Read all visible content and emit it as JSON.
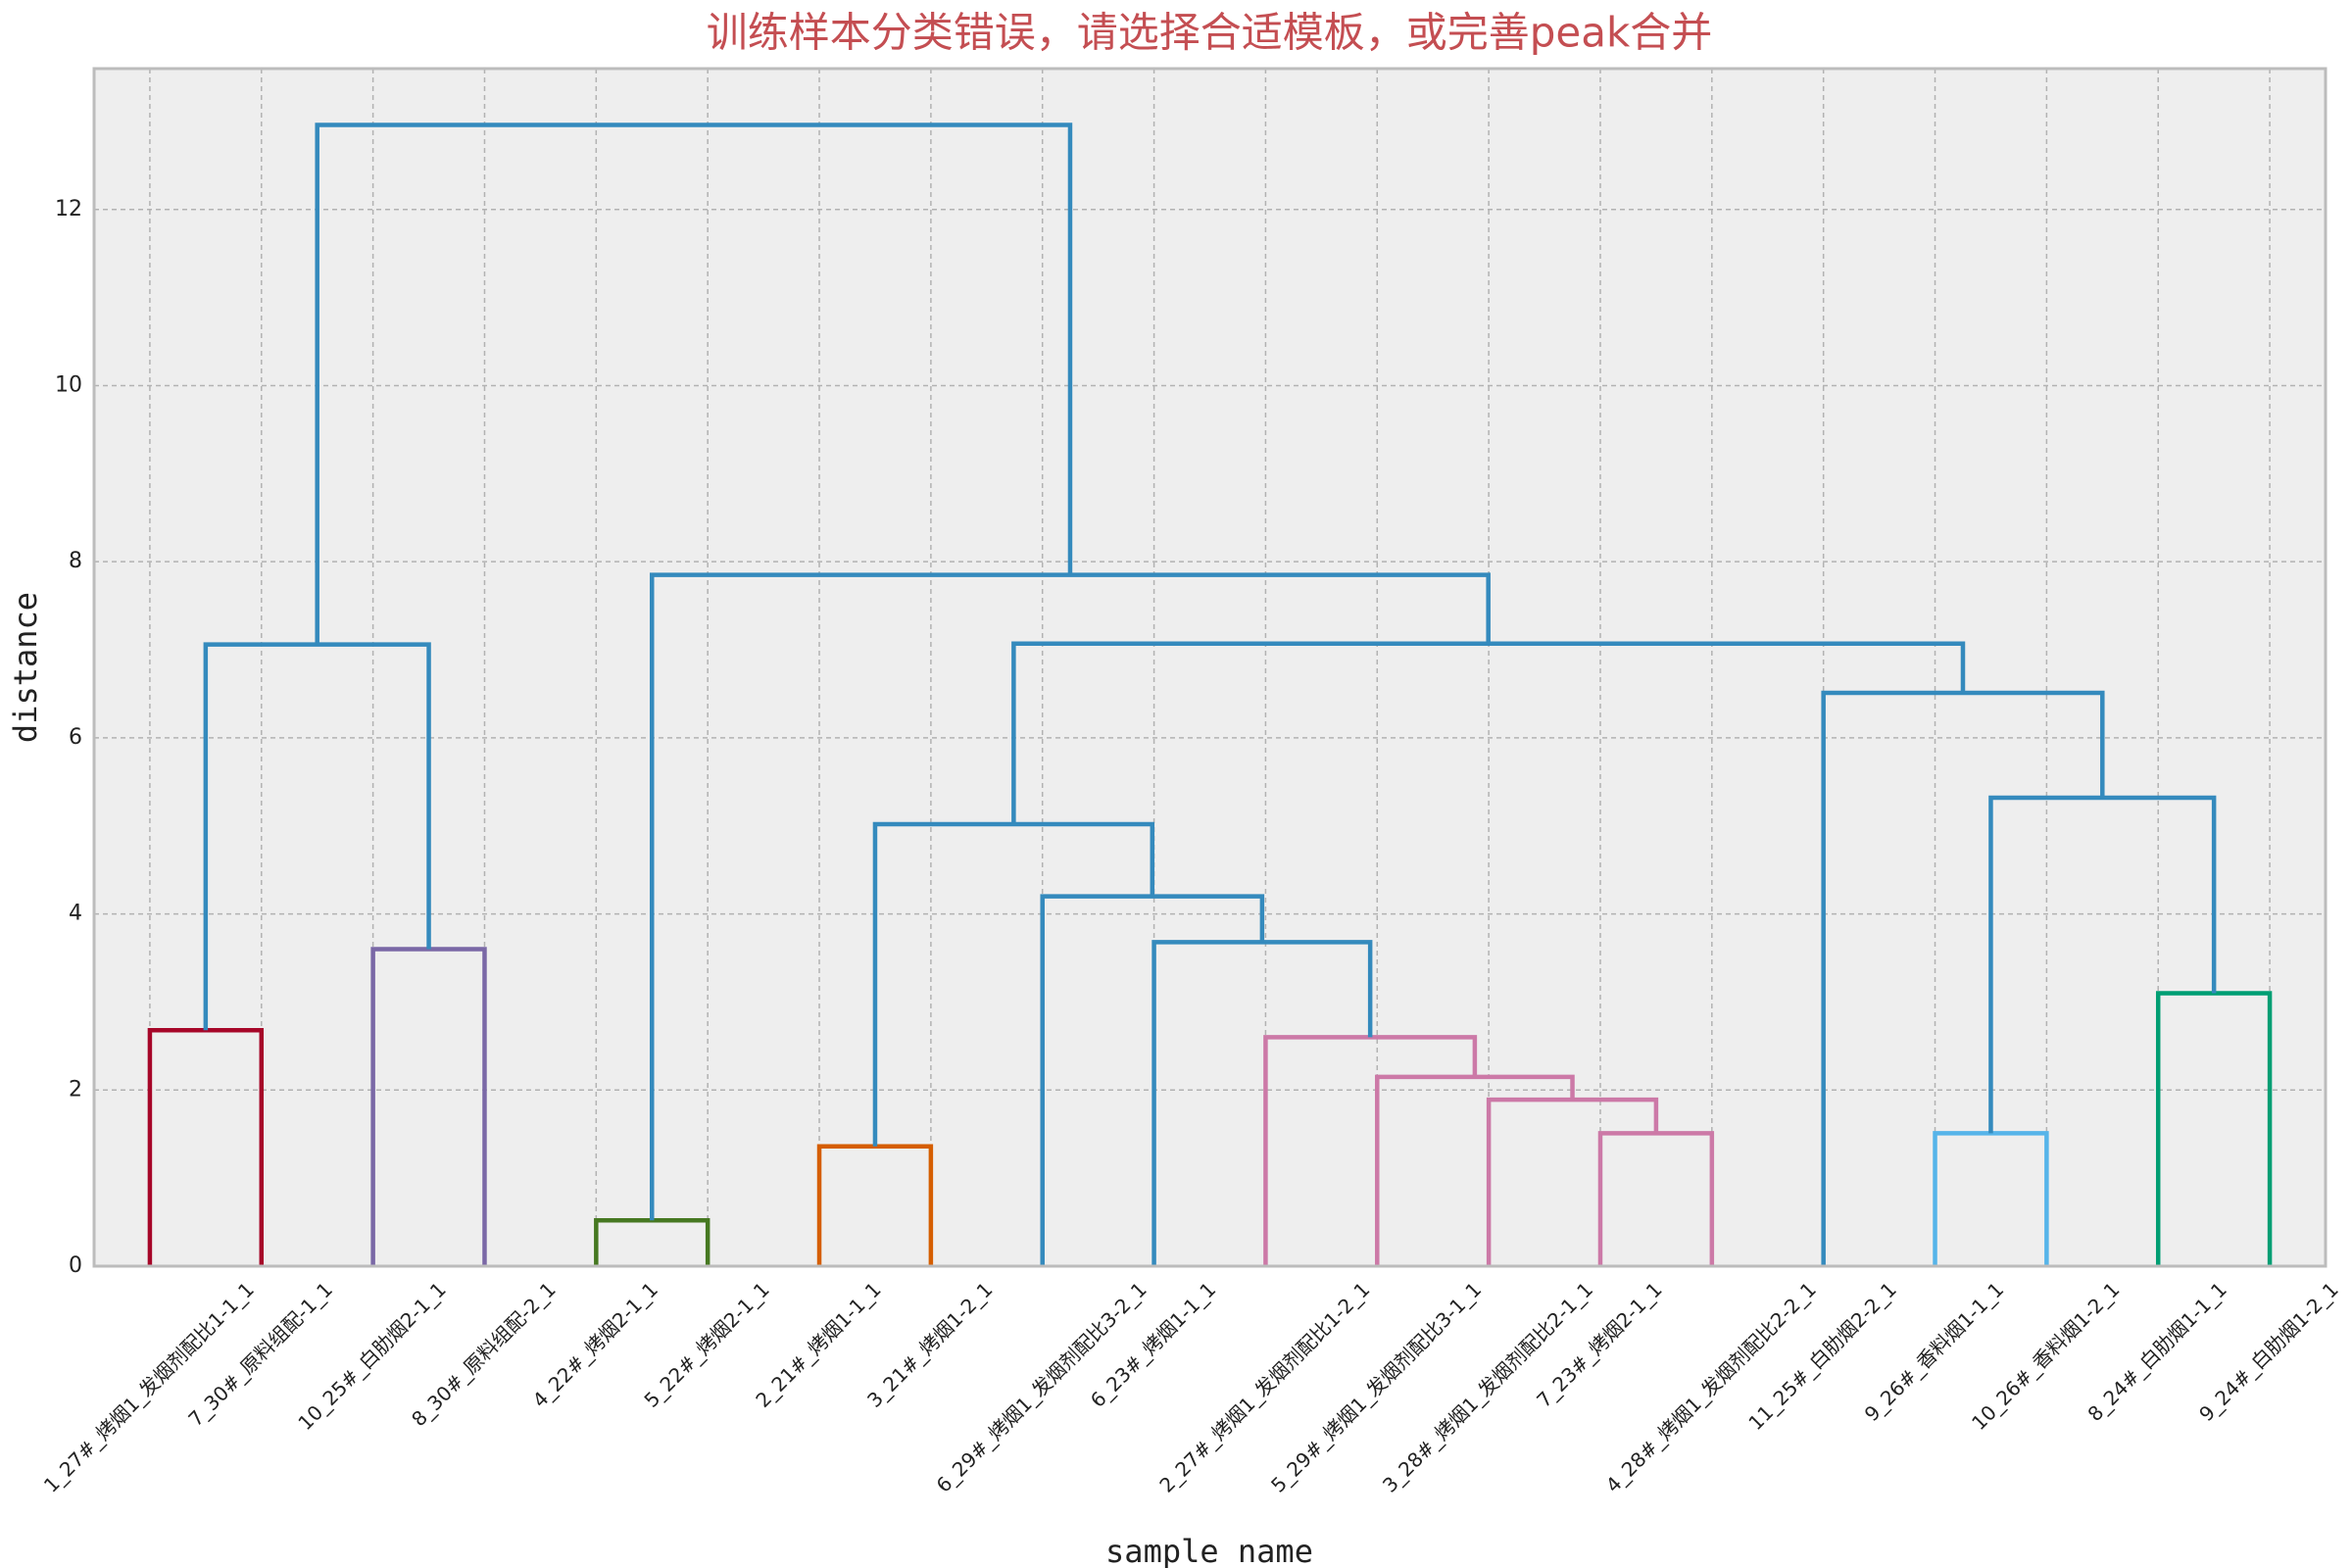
{
  "chart_data": {
    "type": "dendrogram",
    "title": "训练样本分类错误，请选择合适模板，或完善peak合并",
    "x_label": "sample name",
    "y_label": "distance",
    "ylim": [
      0,
      13.6
    ],
    "yticks": [
      0,
      2,
      4,
      6,
      8,
      10,
      12
    ],
    "grid": true,
    "tree": {
      "height": 12.96,
      "color": "#348abd",
      "children": [
        {
          "height": 7.06,
          "color": "#348abd",
          "children": [
            {
              "height": 2.68,
              "color": "#a60628",
              "children": [
                {
                  "label": "1_27#_烤烟1_发烟剂配比1-1_1"
                },
                {
                  "label": "7_30#_原料组配-1_1"
                }
              ]
            },
            {
              "height": 3.6,
              "color": "#7a68a6",
              "children": [
                {
                  "label": "10_25#_白肋烟2-1_1"
                },
                {
                  "label": "8_30#_原料组配-2_1"
                }
              ]
            }
          ]
        },
        {
          "height": 7.85,
          "color": "#348abd",
          "children": [
            {
              "height": 0.52,
              "color": "#467821",
              "children": [
                {
                  "label": "4_22#_烤烟2-1_1"
                },
                {
                  "label": "5_22#_烤烟2-1_1"
                }
              ]
            },
            {
              "height": 7.07,
              "color": "#348abd",
              "children": [
                {
                  "height": 5.02,
                  "color": "#348abd",
                  "children": [
                    {
                      "height": 1.36,
                      "color": "#d55e00",
                      "children": [
                        {
                          "label": "2_21#_烤烟1-1_1"
                        },
                        {
                          "label": "3_21#_烤烟1-2_1"
                        }
                      ]
                    },
                    {
                      "height": 4.2,
                      "color": "#348abd",
                      "children": [
                        {
                          "label": "6_29#_烤烟1_发烟剂配比3-2_1"
                        },
                        {
                          "height": 3.68,
                          "color": "#348abd",
                          "children": [
                            {
                              "label": "6_23#_烤烟1-1_1"
                            },
                            {
                              "height": 2.6,
                              "color": "#cc79a7",
                              "children": [
                                {
                                  "label": "2_27#_烤烟1_发烟剂配比1-2_1"
                                },
                                {
                                  "height": 2.15,
                                  "color": "#cc79a7",
                                  "children": [
                                    {
                                      "label": "5_29#_烤烟1_发烟剂配比3-1_1"
                                    },
                                    {
                                      "height": 1.89,
                                      "color": "#cc79a7",
                                      "children": [
                                        {
                                          "label": "3_28#_烤烟1_发烟剂配比2-1_1"
                                        },
                                        {
                                          "height": 1.51,
                                          "color": "#cc79a7",
                                          "children": [
                                            {
                                              "label": "7_23#_烤烟2-1_1"
                                            },
                                            {
                                              "label": "4_28#_烤烟1_发烟剂配比2-2_1"
                                            }
                                          ]
                                        }
                                      ]
                                    }
                                  ]
                                }
                              ]
                            }
                          ]
                        }
                      ]
                    }
                  ]
                },
                {
                  "height": 6.51,
                  "color": "#348abd",
                  "children": [
                    {
                      "label": "11_25#_白肋烟2-2_1"
                    },
                    {
                      "height": 5.32,
                      "color": "#348abd",
                      "children": [
                        {
                          "height": 1.51,
                          "color": "#56b4e9",
                          "children": [
                            {
                              "label": "9_26#_香料烟1-1_1"
                            },
                            {
                              "label": "10_26#_香料烟1-2_1"
                            }
                          ]
                        },
                        {
                          "height": 3.1,
                          "color": "#009e73",
                          "children": [
                            {
                              "label": "8_24#_白肋烟1-1_1"
                            },
                            {
                              "label": "9_24#_白肋烟1-2_1"
                            }
                          ]
                        }
                      ]
                    }
                  ]
                }
              ]
            }
          ]
        }
      ]
    }
  }
}
